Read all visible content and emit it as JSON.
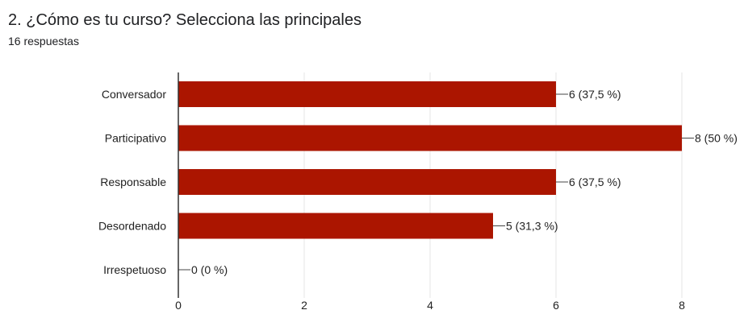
{
  "question": {
    "title": "2. ¿Cómo es tu curso?  Selecciona las principales",
    "response_count": "16 respuestas"
  },
  "colors": {
    "bar": "#ab1500",
    "grid": "#e6e6e6",
    "axis": "#333333",
    "text": "#222222"
  },
  "chart_data": {
    "type": "bar",
    "orientation": "horizontal",
    "categories": [
      "Conversador",
      "Participativo",
      "Responsable",
      "Desordenado",
      "Irrespetuoso"
    ],
    "values": [
      6,
      8,
      6,
      5,
      0
    ],
    "data_labels": [
      "6 (37,5 %)",
      "8 (50 %)",
      "6 (37,5 %)",
      "5 (31,3 %)",
      "0 (0 %)"
    ],
    "xlim": [
      0,
      8
    ],
    "x_ticks": [
      0,
      2,
      4,
      6,
      8
    ],
    "grid": true,
    "legend": "none"
  }
}
